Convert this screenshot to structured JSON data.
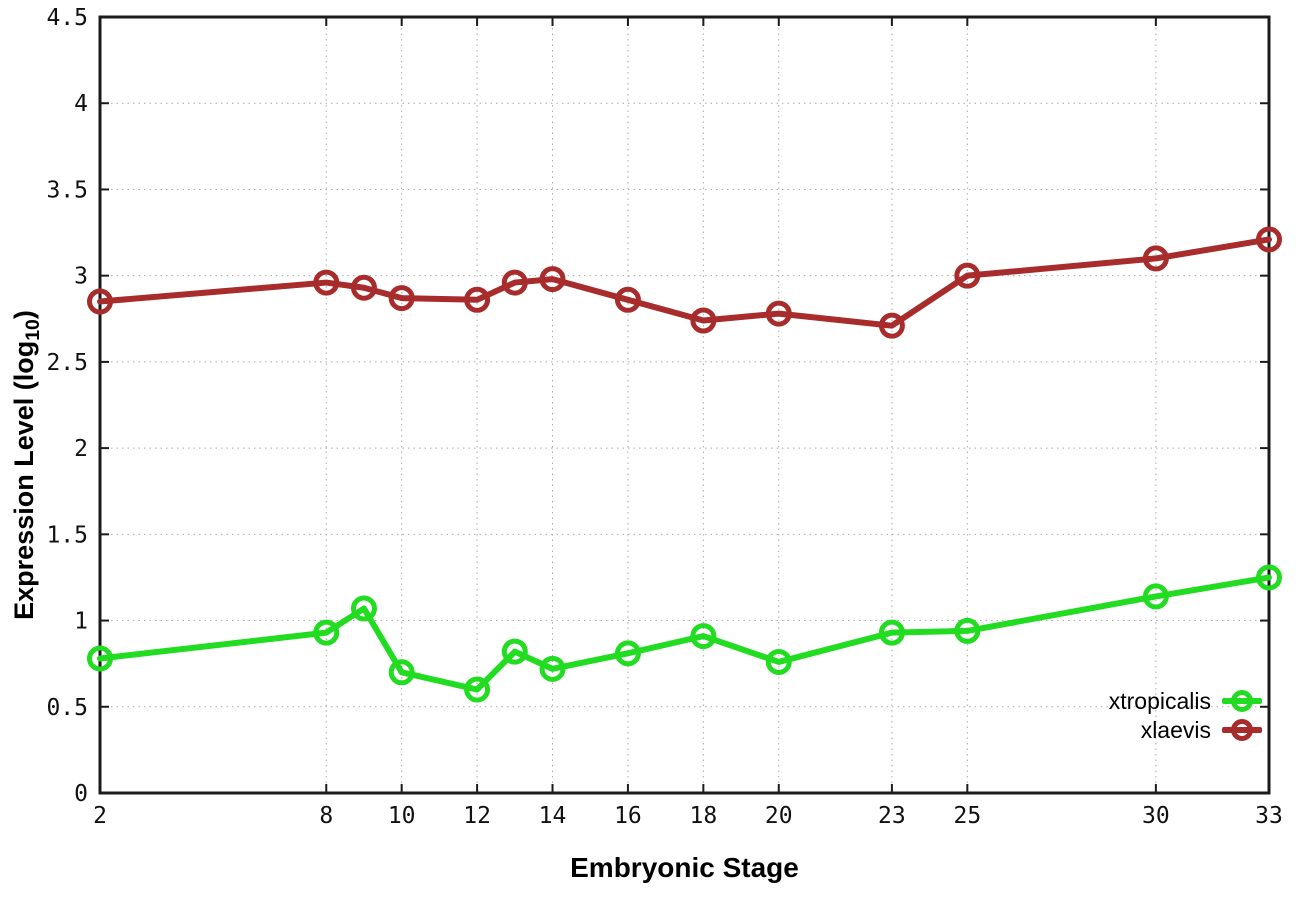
{
  "chart_data": {
    "type": "line",
    "title": "",
    "xlabel": "Embryonic Stage",
    "ylabel": "Expression Level (log10)",
    "ylabel_parts": {
      "prefix": "Expression Level (log",
      "sub": "10",
      "suffix": ")"
    },
    "x": [
      2,
      8,
      9,
      10,
      12,
      13,
      14,
      16,
      18,
      20,
      23,
      25,
      30,
      33
    ],
    "series": [
      {
        "name": "xtropicalis",
        "color": "#21dc21",
        "values": [
          0.78,
          0.93,
          1.07,
          0.7,
          0.6,
          0.82,
          0.72,
          0.81,
          0.91,
          0.76,
          0.93,
          0.94,
          1.14,
          1.25
        ]
      },
      {
        "name": "xlaevis",
        "color": "#a82c2c",
        "values": [
          2.85,
          2.96,
          2.93,
          2.87,
          2.86,
          2.96,
          2.98,
          2.86,
          2.74,
          2.78,
          2.71,
          3.0,
          3.1,
          3.21
        ]
      }
    ],
    "xlim": [
      2,
      33
    ],
    "ylim": [
      0,
      4.5
    ],
    "xticks": [
      {
        "value": 2,
        "label": "2"
      },
      {
        "value": 8,
        "label": "8"
      },
      {
        "value": 10,
        "label": "10"
      },
      {
        "value": 12,
        "label": "12"
      },
      {
        "value": 14,
        "label": "14"
      },
      {
        "value": 16,
        "label": "16"
      },
      {
        "value": 18,
        "label": "18"
      },
      {
        "value": 20,
        "label": "20"
      },
      {
        "value": 23,
        "label": "23"
      },
      {
        "value": 25,
        "label": "25"
      },
      {
        "value": 30,
        "label": "30"
      },
      {
        "value": 33,
        "label": "33"
      }
    ],
    "yticks": [
      {
        "value": 0,
        "label": "0"
      },
      {
        "value": 0.5,
        "label": "0.5"
      },
      {
        "value": 1,
        "label": "1"
      },
      {
        "value": 1.5,
        "label": "1.5"
      },
      {
        "value": 2,
        "label": "2"
      },
      {
        "value": 2.5,
        "label": "2.5"
      },
      {
        "value": 3,
        "label": "3"
      },
      {
        "value": 3.5,
        "label": "3.5"
      },
      {
        "value": 4,
        "label": "4"
      },
      {
        "value": 4.5,
        "label": "4.5"
      }
    ],
    "grid": true,
    "legend_position": "bottom-right"
  }
}
